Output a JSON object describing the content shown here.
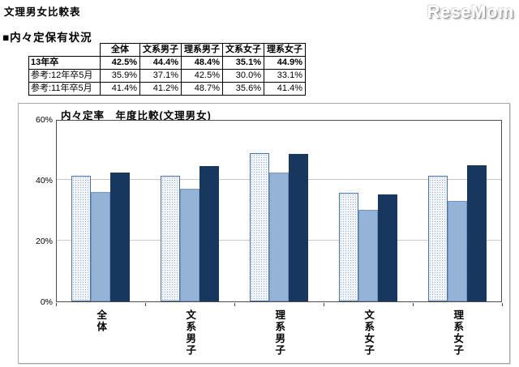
{
  "page": {
    "title": "文理男女比較表",
    "logo": "ReseMom",
    "section_heading": "■内々定保有状況"
  },
  "table": {
    "columns": [
      "全体",
      "文系男子",
      "理系男子",
      "文系女子",
      "理系女子"
    ],
    "rows": [
      {
        "label": "13年卒",
        "bold": true,
        "values": [
          "42.5%",
          "44.4%",
          "48.4%",
          "35.1%",
          "44.9%"
        ]
      },
      {
        "label": "参考:12年卒5月",
        "bold": false,
        "values": [
          "35.9%",
          "37.1%",
          "42.5%",
          "30.0%",
          "33.1%"
        ]
      },
      {
        "label": "参考:11年卒5月",
        "bold": false,
        "values": [
          "41.4%",
          "41.2%",
          "48.7%",
          "35.6%",
          "41.4%"
        ]
      }
    ]
  },
  "chart_data": {
    "type": "bar",
    "title": "内々定率　年度比較(文理男女)",
    "categories": [
      "全体",
      "文系男子",
      "理系男子",
      "文系女子",
      "理系女子"
    ],
    "series": [
      {
        "name": "11年卒",
        "values": [
          41.4,
          41.2,
          48.7,
          35.6,
          41.4
        ],
        "color": "#f1f5fa",
        "pattern": "dotted",
        "border": "#4a74ab"
      },
      {
        "name": "12年卒",
        "values": [
          35.9,
          37.1,
          42.5,
          30.0,
          33.1
        ],
        "color": "#95b3d7"
      },
      {
        "name": "13年卒",
        "values": [
          42.5,
          44.4,
          48.4,
          35.1,
          44.9
        ],
        "color": "#17375e"
      }
    ],
    "ylim": [
      0,
      60
    ],
    "yticks": [
      "0%",
      "20%",
      "40%",
      "60%"
    ],
    "grid_values": [
      20,
      40
    ],
    "grid": true,
    "legend_position": "top-right",
    "colors": {
      "light_patterned": "#d6e0ee",
      "light_blue": "#95b3d7",
      "dark_navy": "#17375e",
      "gridline": "#c9c9c9"
    }
  }
}
